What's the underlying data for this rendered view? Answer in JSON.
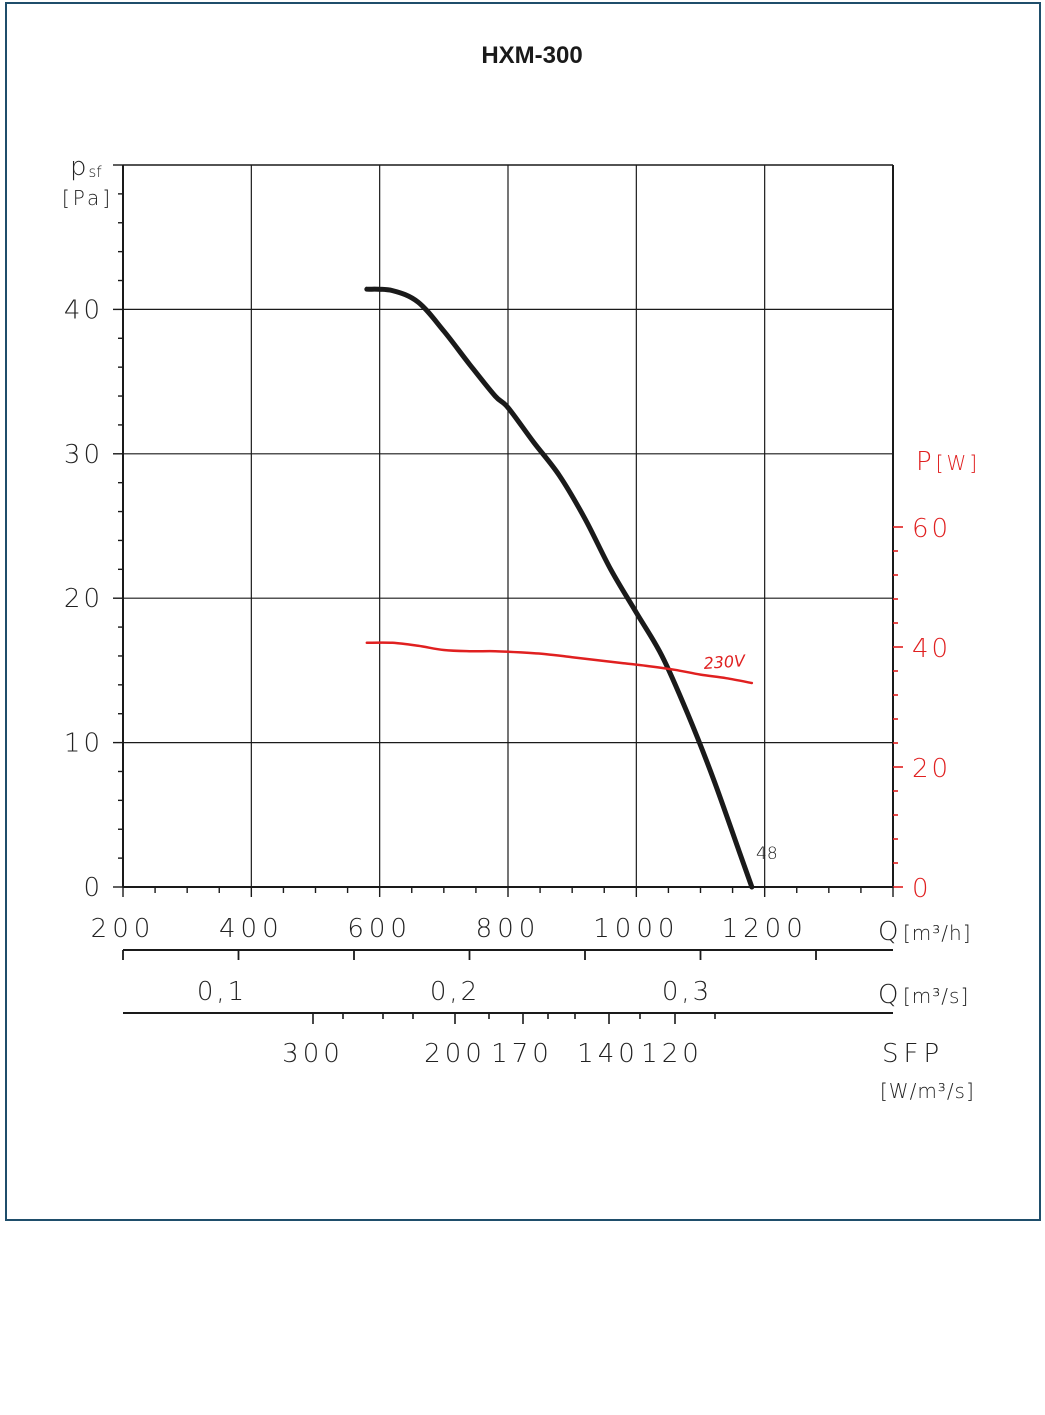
{
  "colors": {
    "frame": "#1f4e6b",
    "grid": "#1a1a1a",
    "pressure_curve": "#1a1a1a",
    "power_curve": "#e02020",
    "power_axis": "#e02020"
  },
  "chart_data": {
    "type": "line",
    "title": "HXM-300",
    "x_axis": {
      "label": "Q",
      "unit": "[m³/h]",
      "range": [
        200,
        1400
      ],
      "ticks": [
        "200",
        "400",
        "600",
        "800",
        "1000",
        "1200"
      ]
    },
    "y_axis_left": {
      "label": "psf",
      "label_main": "p",
      "label_sub": "sf",
      "unit": "[Pa]",
      "range": [
        0,
        50
      ],
      "ticks": [
        "0",
        "10",
        "20",
        "30",
        "40"
      ]
    },
    "y_axis_right": {
      "label": "P",
      "unit": "[W]",
      "range": [
        0,
        60
      ],
      "ticks": [
        "0",
        "20",
        "40",
        "60"
      ]
    },
    "secondary_x_axis": {
      "label": "Q",
      "unit": "[m³/s]",
      "ticks": [
        "0,1",
        "0,2",
        "0,3"
      ]
    },
    "sfp_axis": {
      "label": "SFP",
      "unit": "[W/m³/s]",
      "ticks": [
        "300",
        "200",
        "170",
        "140",
        "120"
      ]
    },
    "series": [
      {
        "axis": "left",
        "end_label": "48",
        "x": [
          580,
          620,
          660,
          700,
          740,
          780,
          800,
          840,
          880,
          920,
          960,
          1000,
          1040,
          1080,
          1120,
          1160,
          1180
        ],
        "y": [
          41.4,
          41.3,
          40.5,
          38.5,
          36.2,
          34.0,
          33.2,
          30.8,
          28.5,
          25.5,
          22.0,
          19.0,
          16.0,
          12.0,
          7.5,
          2.5,
          0
        ]
      },
      {
        "axis": "right",
        "name": "230V",
        "x": [
          580,
          620,
          660,
          700,
          740,
          780,
          820,
          860,
          900,
          940,
          980,
          1020,
          1060,
          1100,
          1140,
          1180
        ],
        "y": [
          40.7,
          40.7,
          40.2,
          39.5,
          39.3,
          39.3,
          39.1,
          38.8,
          38.3,
          37.8,
          37.3,
          36.8,
          36.2,
          35.4,
          34.8,
          34.0
        ]
      }
    ],
    "grid": true
  }
}
